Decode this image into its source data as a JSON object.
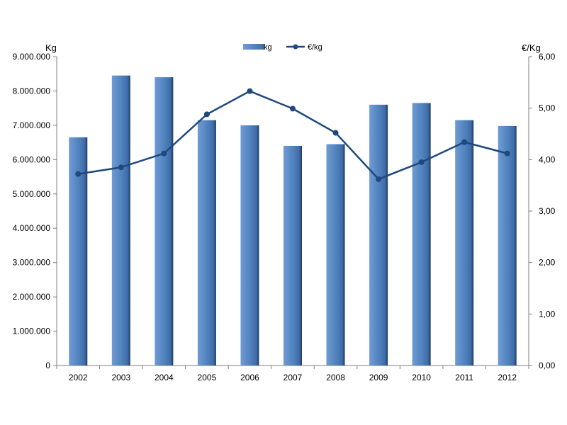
{
  "chart_data": {
    "type": "bar",
    "categories": [
      "2002",
      "2003",
      "2004",
      "2005",
      "2006",
      "2007",
      "2008",
      "2009",
      "2010",
      "2011",
      "2012"
    ],
    "series": [
      {
        "name": "kg",
        "type": "bar",
        "axis": "left",
        "values": [
          6650000,
          8450000,
          8400000,
          7150000,
          7000000,
          6400000,
          6450000,
          7600000,
          7650000,
          7150000,
          6980000
        ]
      },
      {
        "name": "€/kg",
        "type": "line",
        "axis": "right",
        "values": [
          3.72,
          3.85,
          4.12,
          4.88,
          5.33,
          4.99,
          4.52,
          3.62,
          3.95,
          4.34,
          4.12
        ]
      }
    ],
    "y_left": {
      "label": "Kg",
      "lim": [
        0,
        9000000
      ],
      "ticks": [
        "0",
        "1.000.000",
        "2.000.000",
        "3.000.000",
        "4.000.000",
        "5.000.000",
        "6.000.000",
        "7.000.000",
        "8.000.000",
        "9.000.000"
      ]
    },
    "y_right": {
      "label": "€/Kg",
      "lim": [
        0,
        6
      ],
      "ticks": [
        "0,00",
        "1,00",
        "2,00",
        "3,00",
        "4,00",
        "5,00",
        "6,00"
      ]
    },
    "grid": false,
    "legend_position": "top-center",
    "colors": {
      "bar": "#4f81bd",
      "bar_dark": "#1f3b63",
      "line": "#1f497d"
    }
  }
}
